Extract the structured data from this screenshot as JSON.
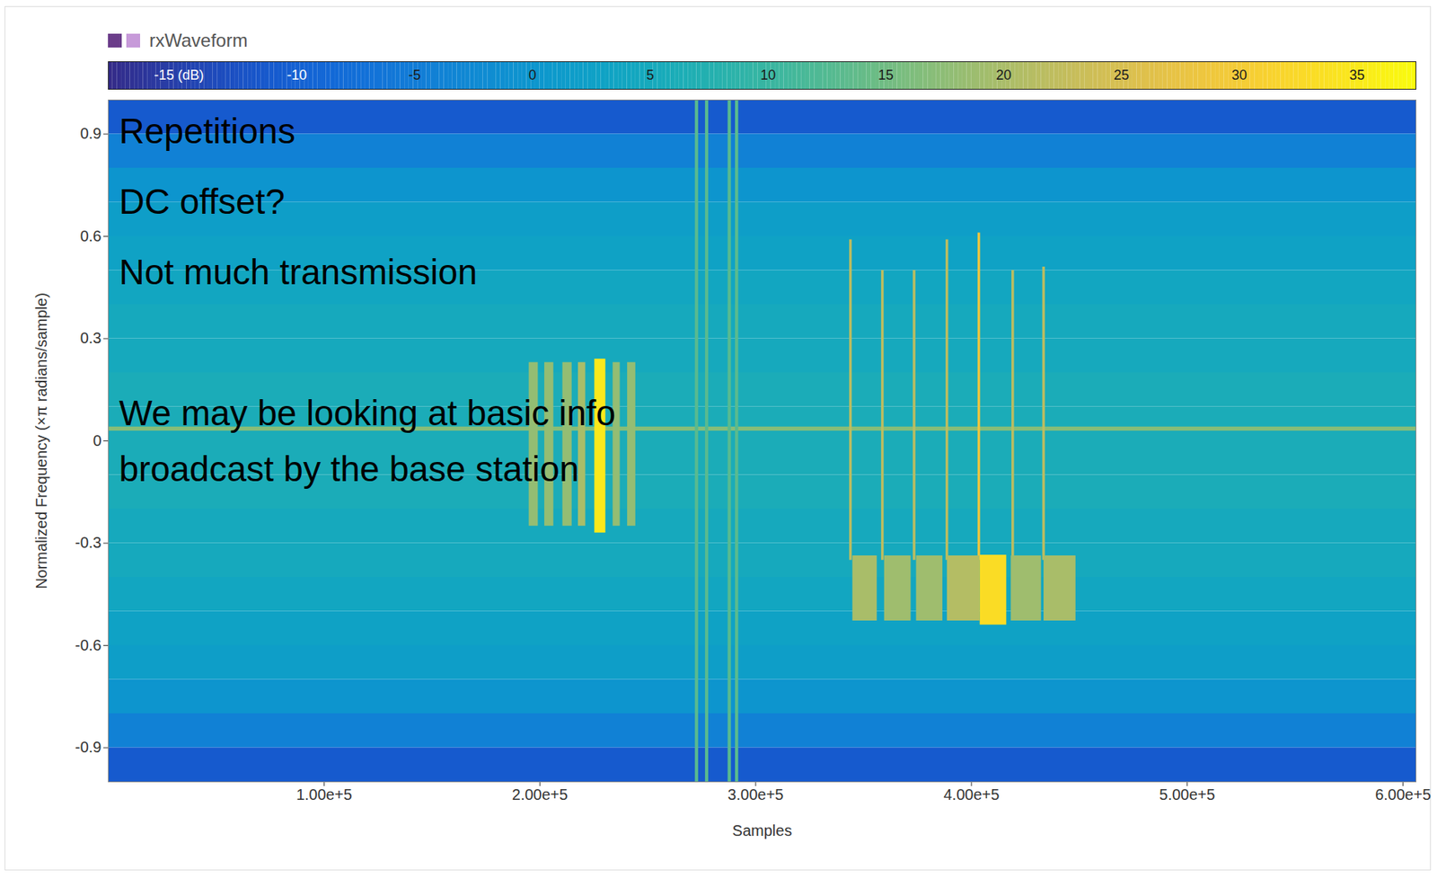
{
  "chart_data": {
    "type": "spectrogram",
    "title": "rxWaveform",
    "x_label": "Samples",
    "y_label": "Normalized Frequency (×π radians/sample)",
    "xlim": [
      0,
      606000
    ],
    "xticks": [
      {
        "value": 100000,
        "label": "1.00e+5"
      },
      {
        "value": 200000,
        "label": "2.00e+5"
      },
      {
        "value": 300000,
        "label": "3.00e+5"
      },
      {
        "value": 400000,
        "label": "4.00e+5"
      },
      {
        "value": 500000,
        "label": "5.00e+5"
      },
      {
        "value": 600000,
        "label": "6.00e+5"
      }
    ],
    "ylim": [
      -1,
      1
    ],
    "yticks": [
      -0.9,
      -0.6,
      -0.3,
      0,
      0.3,
      0.6,
      0.9
    ],
    "colorbar": {
      "range": [
        -18,
        37.5
      ],
      "ticks": [
        {
          "value": -15,
          "label": "-15 (dB)"
        },
        -10,
        -5,
        0,
        5,
        10,
        15,
        20,
        25,
        30,
        35
      ]
    },
    "annotations": [
      "Repetitions",
      "DC offset?",
      "Not much transmission",
      "We may be looking at basic info broadcast by the base station"
    ],
    "cells": [
      {
        "x0": 0,
        "x1": 606000,
        "y0": 0.9,
        "y1": 1.0,
        "value": -11
      },
      {
        "x0": 0,
        "x1": 606000,
        "y0": 0.8,
        "y1": 0.9,
        "value": -4
      },
      {
        "x0": 0,
        "x1": 606000,
        "y0": 0.7,
        "y1": 0.8,
        "value": 0
      },
      {
        "x0": 0,
        "x1": 606000,
        "y0": 0.6,
        "y1": 0.7,
        "value": 2
      },
      {
        "x0": 0,
        "x1": 606000,
        "y0": 0.5,
        "y1": 0.6,
        "value": 3
      },
      {
        "x0": 0,
        "x1": 606000,
        "y0": 0.4,
        "y1": 0.5,
        "value": 4
      },
      {
        "x0": 0,
        "x1": 606000,
        "y0": 0.3,
        "y1": 0.4,
        "value": 5
      },
      {
        "x0": 0,
        "x1": 606000,
        "y0": 0.2,
        "y1": 0.3,
        "value": 5
      },
      {
        "x0": 0,
        "x1": 606000,
        "y0": 0.1,
        "y1": 0.2,
        "value": 6
      },
      {
        "x0": 0,
        "x1": 606000,
        "y0": 0.0,
        "y1": 0.1,
        "value": 6
      },
      {
        "x0": 0,
        "x1": 606000,
        "y0": -0.1,
        "y1": 0.0,
        "value": 6
      },
      {
        "x0": 0,
        "x1": 606000,
        "y0": -0.2,
        "y1": -0.1,
        "value": 6
      },
      {
        "x0": 0,
        "x1": 606000,
        "y0": -0.3,
        "y1": -0.2,
        "value": 5
      },
      {
        "x0": 0,
        "x1": 606000,
        "y0": -0.4,
        "y1": -0.3,
        "value": 5
      },
      {
        "x0": 0,
        "x1": 606000,
        "y0": -0.5,
        "y1": -0.4,
        "value": 4
      },
      {
        "x0": 0,
        "x1": 606000,
        "y0": -0.6,
        "y1": -0.5,
        "value": 3
      },
      {
        "x0": 0,
        "x1": 606000,
        "y0": -0.7,
        "y1": -0.6,
        "value": 2
      },
      {
        "x0": 0,
        "x1": 606000,
        "y0": -0.8,
        "y1": -0.7,
        "value": 0
      },
      {
        "x0": 0,
        "x1": 606000,
        "y0": -0.9,
        "y1": -0.8,
        "value": -4
      },
      {
        "x0": 0,
        "x1": 606000,
        "y0": -1.0,
        "y1": -0.9,
        "value": -11
      },
      {
        "x0": 0,
        "x1": 606000,
        "y0": 0.029,
        "y1": 0.041,
        "value": 17
      },
      {
        "x0": 195000,
        "x1": 199200,
        "y0": -0.25,
        "y1": 0.23,
        "value": 18
      },
      {
        "x0": 202200,
        "x1": 206400,
        "y0": -0.25,
        "y1": 0.23,
        "value": 18
      },
      {
        "x0": 210600,
        "x1": 214900,
        "y0": -0.25,
        "y1": 0.23,
        "value": 18
      },
      {
        "x0": 217800,
        "x1": 221200,
        "y0": -0.25,
        "y1": 0.23,
        "value": 20
      },
      {
        "x0": 225400,
        "x1": 230500,
        "y0": -0.27,
        "y1": 0.24,
        "value": 35
      },
      {
        "x0": 233900,
        "x1": 237200,
        "y0": -0.25,
        "y1": 0.23,
        "value": 18
      },
      {
        "x0": 240600,
        "x1": 244400,
        "y0": -0.25,
        "y1": 0.23,
        "value": 18
      },
      {
        "x0": 272000,
        "x1": 273500,
        "y0": -1,
        "y1": 1,
        "value": 13
      },
      {
        "x0": 276700,
        "x1": 278200,
        "y0": -1,
        "y1": 1,
        "value": 13
      },
      {
        "x0": 287200,
        "x1": 288700,
        "y0": -1,
        "y1": 1,
        "value": 13
      },
      {
        "x0": 290600,
        "x1": 292100,
        "y0": -1,
        "y1": 1,
        "value": 13
      },
      {
        "x0": 343500,
        "x1": 344700,
        "y0": -0.35,
        "y1": 0.59,
        "value": 22
      },
      {
        "x0": 358300,
        "x1": 359500,
        "y0": -0.35,
        "y1": 0.5,
        "value": 22
      },
      {
        "x0": 373000,
        "x1": 374200,
        "y0": -0.35,
        "y1": 0.5,
        "value": 22
      },
      {
        "x0": 388200,
        "x1": 389400,
        "y0": -0.35,
        "y1": 0.59,
        "value": 22
      },
      {
        "x0": 403000,
        "x1": 404200,
        "y0": -0.35,
        "y1": 0.61,
        "value": 28
      },
      {
        "x0": 418700,
        "x1": 419900,
        "y0": -0.35,
        "y1": 0.5,
        "value": 22
      },
      {
        "x0": 433000,
        "x1": 434200,
        "y0": -0.35,
        "y1": 0.51,
        "value": 22
      },
      {
        "x0": 345000,
        "x1": 356300,
        "y0": -0.528,
        "y1": -0.337,
        "value": 20
      },
      {
        "x0": 359700,
        "x1": 372000,
        "y0": -0.528,
        "y1": -0.337,
        "value": 19
      },
      {
        "x0": 374500,
        "x1": 386700,
        "y0": -0.528,
        "y1": -0.337,
        "value": 19
      },
      {
        "x0": 388800,
        "x1": 404000,
        "y0": -0.528,
        "y1": -0.337,
        "value": 21
      },
      {
        "x0": 404000,
        "x1": 416300,
        "y0": -0.54,
        "y1": -0.335,
        "value": 33
      },
      {
        "x0": 418400,
        "x1": 432400,
        "y0": -0.528,
        "y1": -0.337,
        "value": 19
      },
      {
        "x0": 433600,
        "x1": 448400,
        "y0": -0.528,
        "y1": -0.337,
        "value": 20
      }
    ]
  }
}
